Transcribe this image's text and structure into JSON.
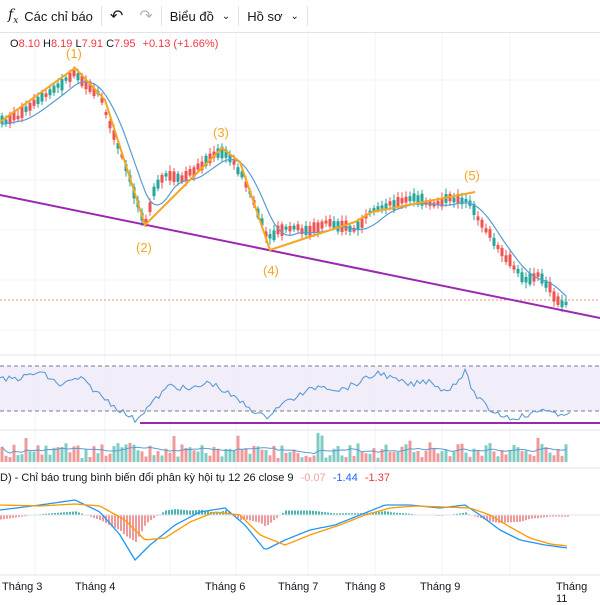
{
  "toolbar": {
    "indicators_label": "Các chỉ báo",
    "chart_label": "Biểu đồ",
    "profile_label": "Hồ sơ"
  },
  "ohlc": {
    "o_label": "O",
    "o": "8.10",
    "h_label": "H",
    "h": "8.19",
    "l_label": "L",
    "l": "7.91",
    "c_label": "C",
    "c": "7.95",
    "change": "+0.13 (+1.66%)"
  },
  "waves": [
    "(1)",
    "(2)",
    "(3)",
    "(4)",
    "(5)"
  ],
  "macd": {
    "title": "D) - Chỉ báo trung bình biến đổi phân kỳ hội tụ 12 26 close 9",
    "v1": "-0.07",
    "v2": "-1.44",
    "v3": "-1.37"
  },
  "x_axis": [
    "Tháng 3",
    "Tháng 4",
    "Tháng 6",
    "Tháng 7",
    "Tháng 8",
    "Tháng 9",
    "Tháng 11"
  ],
  "colors": {
    "up": "#26a69a",
    "down": "#ef5350",
    "ma": "#5b9bd5",
    "wave": "#f5a623",
    "trend": "#9c27b0",
    "rsi": "#5b9bd5",
    "signal": "#ff9800"
  }
}
